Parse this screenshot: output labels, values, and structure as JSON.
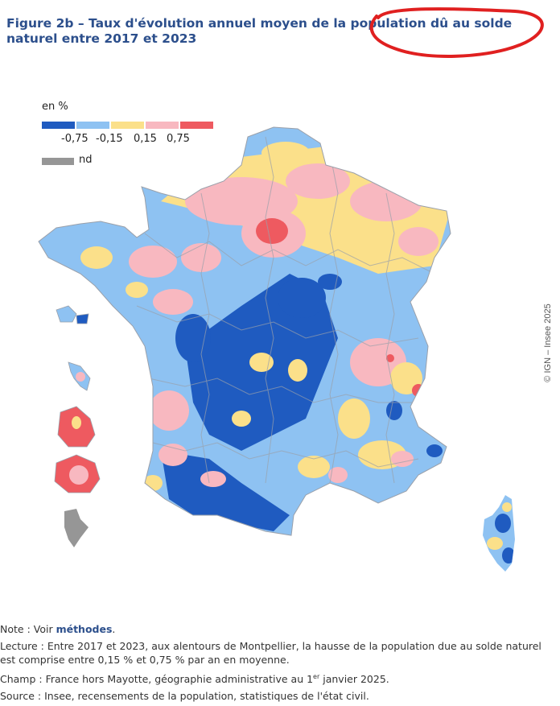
{
  "title": "Figure 2b – Taux d'évolution annuel moyen de la population dû au solde naturel entre 2017 et 2023",
  "legend": {
    "unit_label": "en %",
    "colors": [
      "#1f5bc0",
      "#8ec2f2",
      "#fbe08a",
      "#f8b8c0",
      "#ee5a60"
    ],
    "thresholds": [
      "-0,75",
      "-0,15",
      "0,15",
      "0,75"
    ],
    "nd_color": "#969696",
    "nd_label": "nd"
  },
  "copyright": "© IGN – Insee 2025",
  "notes": {
    "note_prefix": "Note : Voir ",
    "note_link": "méthodes",
    "note_suffix": ".",
    "lecture": "Lecture : Entre 2017 et 2023, aux alentours de Montpellier, la hausse de la population due au solde naturel est comprise entre 0,15 % et 0,75 % par an en moyenne.",
    "champ_prefix": "Champ : France hors Mayotte, géographie administrative au 1",
    "champ_sup": "er",
    "champ_suffix": " janvier 2025.",
    "source": "Source : Insee, recensements de la population, statistiques de l'état civil."
  },
  "map": {
    "regions": [
      "France métropolitaine",
      "Guadeloupe",
      "Martinique",
      "Guyane",
      "La Réunion",
      "Mayotte",
      "Corse"
    ]
  }
}
